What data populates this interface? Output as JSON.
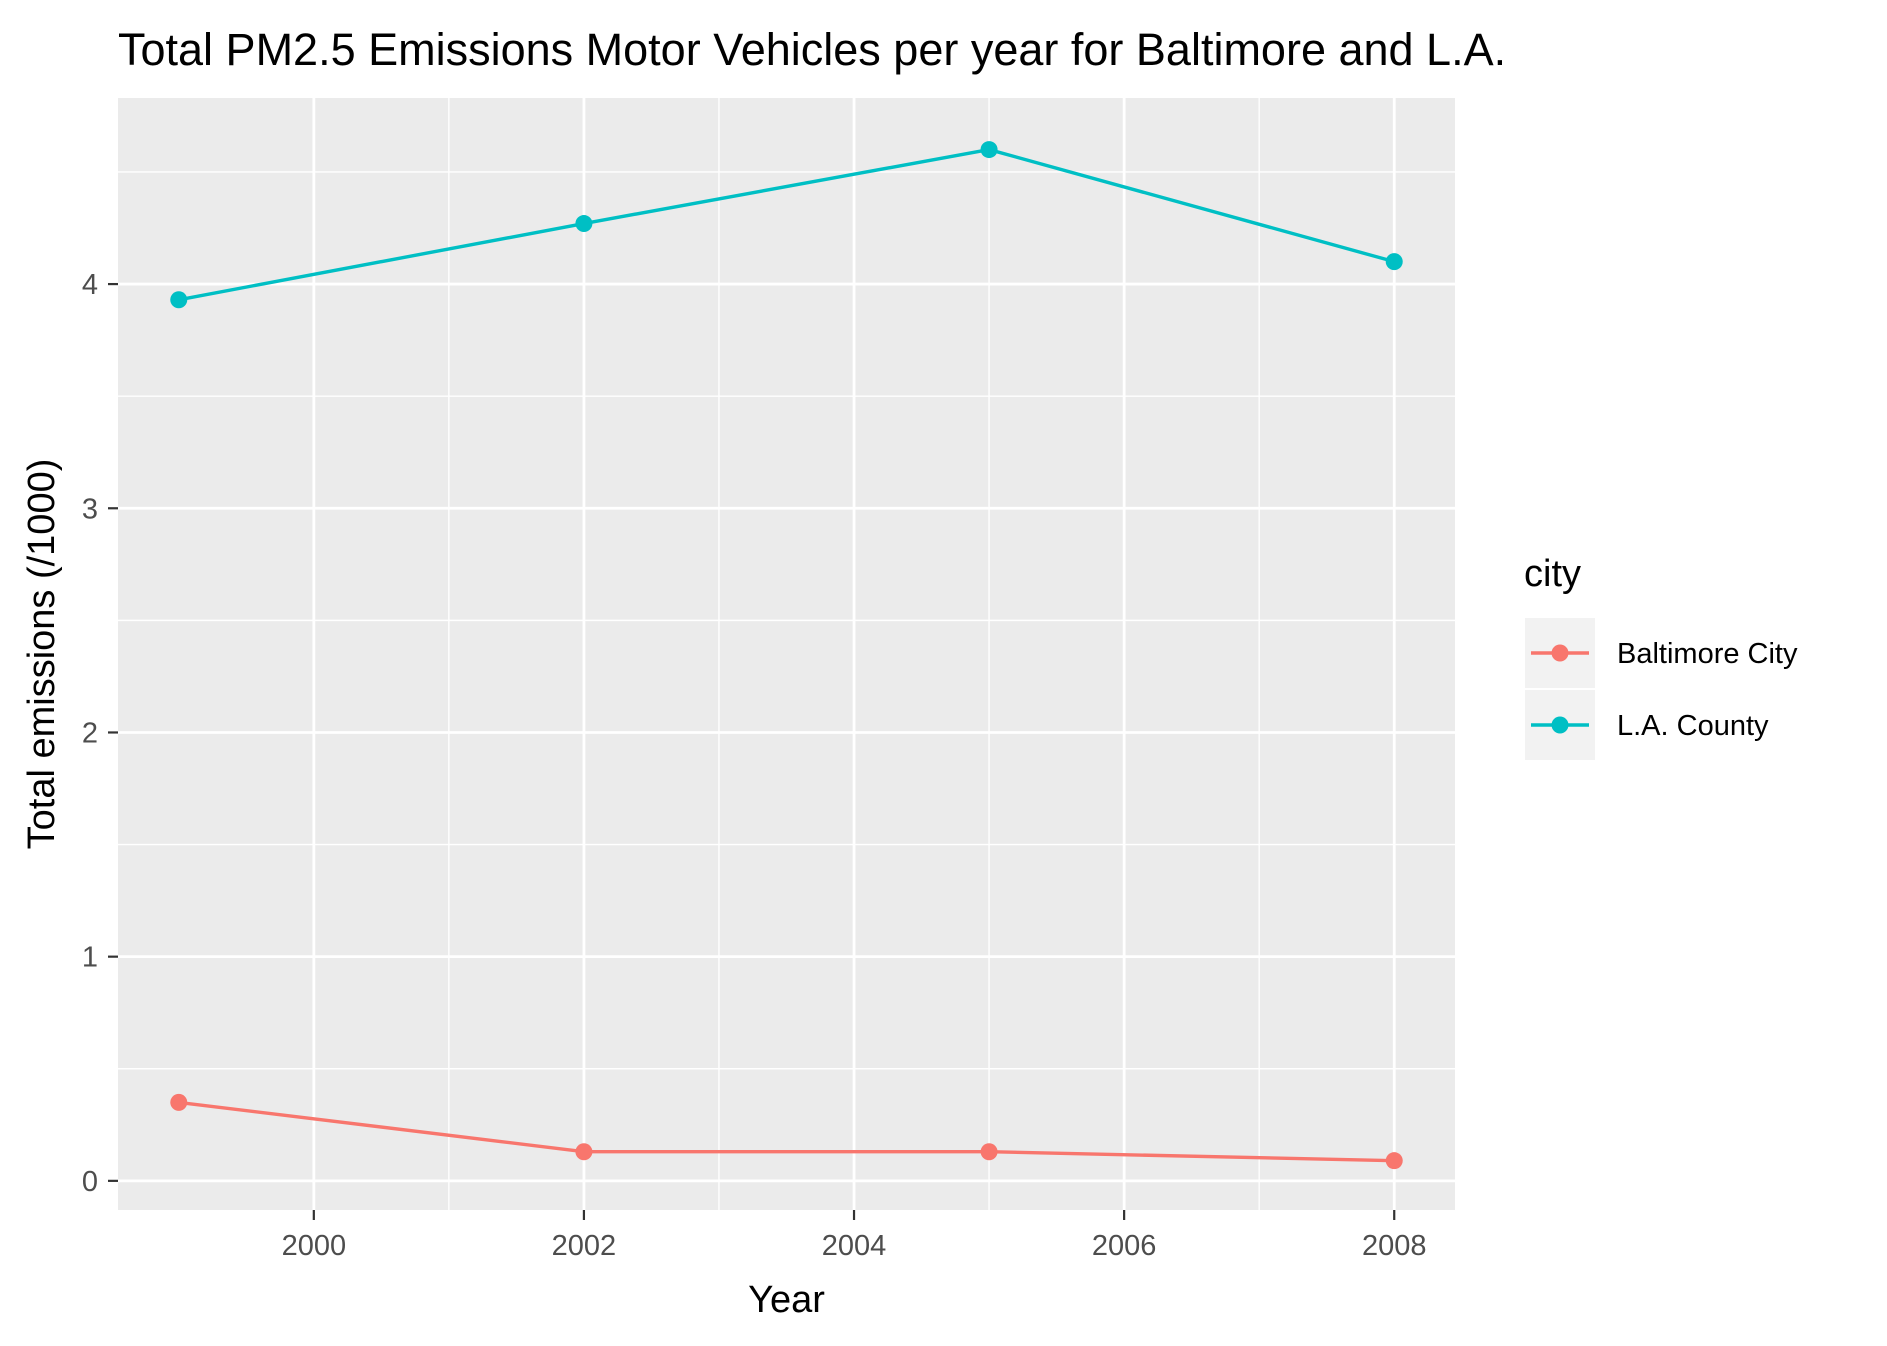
{
  "chart_data": {
    "type": "line",
    "title": "Total PM2.5 Emissions Motor Vehicles per year for Baltimore and L.A.",
    "xlabel": "Year",
    "ylabel": "Total emissions (/1000)",
    "x": [
      1999,
      2002,
      2005,
      2008
    ],
    "xlim": [
      1998.55,
      2008.45
    ],
    "ylim": [
      -0.13,
      4.83
    ],
    "x_ticks": [
      2000,
      2002,
      2004,
      2006,
      2008
    ],
    "x_tick_labels": [
      "2000",
      "2002",
      "2004",
      "2006",
      "2008"
    ],
    "x_minor_ticks": [
      2001,
      2003,
      2005,
      2007
    ],
    "y_ticks": [
      0,
      1,
      2,
      3,
      4
    ],
    "y_tick_labels": [
      "0",
      "1",
      "2",
      "3",
      "4"
    ],
    "y_minor_ticks": [
      0.5,
      1.5,
      2.5,
      3.5,
      4.5
    ],
    "grid": true,
    "legend": {
      "title": "city",
      "placement": "right"
    },
    "series": [
      {
        "name": "Baltimore City",
        "color": "#F8766D",
        "values": [
          0.35,
          0.13,
          0.13,
          0.09
        ]
      },
      {
        "name": "L.A. County",
        "color": "#00BFC4",
        "values": [
          3.93,
          4.27,
          4.6,
          4.1
        ]
      }
    ],
    "colors": {
      "panel_background": "#EBEBEB",
      "grid": "#FFFFFF",
      "tick_text": "#4D4D4D",
      "tick_mark": "#333333"
    }
  }
}
